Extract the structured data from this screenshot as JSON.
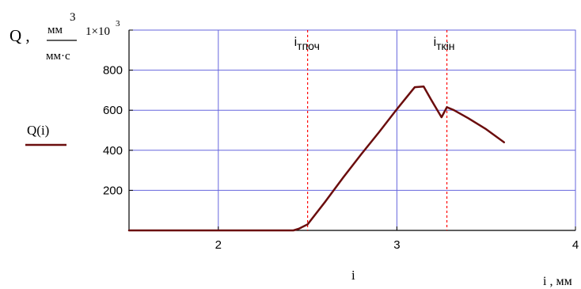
{
  "chart_data": {
    "type": "line",
    "title": "",
    "ylabel": {
      "symbol": "Q ,",
      "unit_numerator": "мм",
      "unit_numerator_exponent": "3",
      "unit_denominator": "мм·с"
    },
    "y_multiplier": {
      "base": "1×10",
      "exponent": "3"
    },
    "xlabel": {
      "var": "i",
      "unit": "i , мм"
    },
    "xlim": [
      1.5,
      4
    ],
    "ylim": [
      0,
      1000
    ],
    "x_ticks": [
      2,
      3,
      4
    ],
    "x_tick_labels": [
      "2",
      "3",
      "4"
    ],
    "y_ticks": [
      200,
      400,
      600,
      800
    ],
    "y_tick_labels": [
      "200",
      "400",
      "600",
      "800"
    ],
    "grid": true,
    "legend": {
      "label": "Q(i)",
      "color": "#6b0d0d"
    },
    "series": [
      {
        "name": "Q(i)",
        "color": "#6b0d0d",
        "x": [
          1.5,
          2.0,
          2.42,
          2.45,
          2.5,
          2.6,
          2.7,
          2.8,
          2.9,
          3.0,
          3.1,
          3.15,
          3.19,
          3.25,
          3.28,
          3.32,
          3.4,
          3.5,
          3.6
        ],
        "y": [
          0,
          0,
          0,
          8,
          30,
          145,
          265,
          380,
          490,
          605,
          715,
          718,
          655,
          565,
          615,
          600,
          560,
          505,
          440
        ]
      }
    ],
    "markers": [
      {
        "name": "i_tpoch",
        "x": 2.5,
        "label_base": "i",
        "label_sub": "тпоч",
        "color": "#ff0000"
      },
      {
        "name": "i_tkin",
        "x": 3.28,
        "label_base": "i",
        "label_sub": "ткін",
        "color": "#ff0000"
      }
    ],
    "colors": {
      "grid": "#6666dd",
      "axes": "#000000",
      "marker": "#ff0000"
    }
  }
}
